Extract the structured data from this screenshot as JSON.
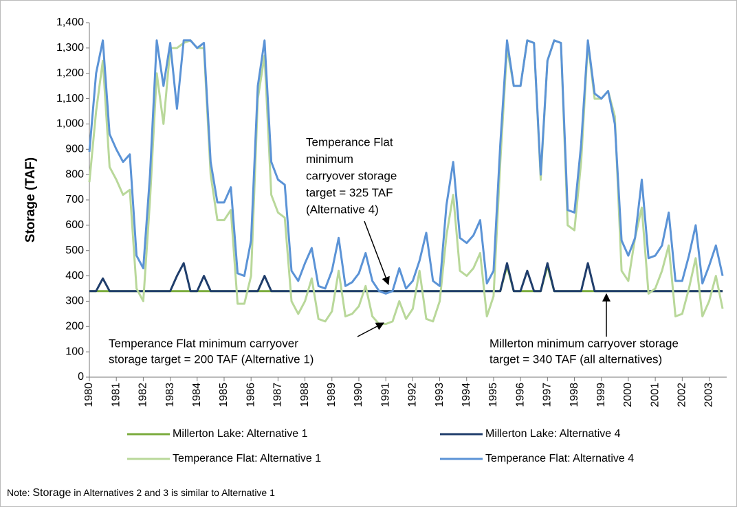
{
  "chart_data": {
    "type": "line",
    "y_label": "Storage (TAF)",
    "x": [
      1980,
      1980.25,
      1980.5,
      1980.75,
      1981,
      1981.25,
      1981.5,
      1981.75,
      1982,
      1982.25,
      1982.5,
      1982.75,
      1983,
      1983.25,
      1983.5,
      1983.75,
      1984,
      1984.25,
      1984.5,
      1984.75,
      1985,
      1985.25,
      1985.5,
      1985.75,
      1986,
      1986.25,
      1986.5,
      1986.75,
      1987,
      1987.25,
      1987.5,
      1987.75,
      1988,
      1988.25,
      1988.5,
      1988.75,
      1989,
      1989.25,
      1989.5,
      1989.75,
      1990,
      1990.25,
      1990.5,
      1990.75,
      1991,
      1991.25,
      1991.5,
      1991.75,
      1992,
      1992.25,
      1992.5,
      1992.75,
      1993,
      1993.25,
      1993.5,
      1993.75,
      1994,
      1994.25,
      1994.5,
      1994.75,
      1995,
      1995.25,
      1995.5,
      1995.75,
      1996,
      1996.25,
      1996.5,
      1996.75,
      1997,
      1997.25,
      1997.5,
      1997.75,
      1998,
      1998.25,
      1998.5,
      1998.75,
      1999,
      1999.25,
      1999.5,
      1999.75,
      2000,
      2000.25,
      2000.5,
      2000.75,
      2001,
      2001.25,
      2001.5,
      2001.75,
      2002,
      2002.25,
      2002.5,
      2002.75,
      2003,
      2003.25,
      2003.5
    ],
    "series": [
      {
        "name": "Millerton Lake: Alternative 1",
        "color": "#7aab3c",
        "values": [
          340,
          340,
          340,
          340,
          340,
          340,
          340,
          340,
          340,
          340,
          340,
          340,
          340,
          340,
          340,
          340,
          340,
          340,
          340,
          340,
          340,
          340,
          340,
          340,
          340,
          340,
          340,
          340,
          340,
          340,
          340,
          340,
          340,
          340,
          340,
          340,
          340,
          340,
          340,
          340,
          340,
          340,
          340,
          340,
          340,
          340,
          340,
          340,
          340,
          340,
          340,
          340,
          340,
          340,
          340,
          340,
          340,
          340,
          340,
          340,
          340,
          340,
          440,
          340,
          340,
          340,
          340,
          340,
          440,
          340,
          340,
          340,
          340,
          340,
          340,
          340,
          340,
          340,
          340,
          340,
          340,
          340,
          340,
          340,
          340,
          340,
          340,
          340,
          340,
          340,
          340,
          340,
          340,
          340,
          340
        ]
      },
      {
        "name": "Millerton Lake: Alternative 4",
        "color": "#1f3d6b",
        "values": [
          340,
          340,
          390,
          340,
          340,
          340,
          340,
          340,
          340,
          340,
          340,
          340,
          340,
          400,
          450,
          340,
          340,
          400,
          340,
          340,
          340,
          340,
          340,
          340,
          340,
          340,
          400,
          340,
          340,
          340,
          340,
          340,
          340,
          340,
          340,
          340,
          340,
          340,
          340,
          340,
          340,
          340,
          340,
          340,
          340,
          340,
          340,
          340,
          340,
          340,
          340,
          340,
          340,
          340,
          340,
          340,
          340,
          340,
          340,
          340,
          340,
          340,
          450,
          340,
          340,
          420,
          340,
          340,
          450,
          340,
          340,
          340,
          340,
          340,
          450,
          340,
          340,
          340,
          340,
          340,
          340,
          340,
          340,
          340,
          340,
          340,
          340,
          340,
          340,
          340,
          340,
          340,
          340,
          340,
          340
        ]
      },
      {
        "name": "Temperance Flat: Alternative 1",
        "color": "#b9d89a",
        "values": [
          770,
          1050,
          1250,
          830,
          780,
          720,
          740,
          350,
          300,
          700,
          1200,
          1000,
          1300,
          1300,
          1320,
          1330,
          1300,
          1300,
          800,
          620,
          620,
          660,
          290,
          290,
          400,
          1100,
          1270,
          720,
          650,
          630,
          300,
          250,
          300,
          390,
          230,
          220,
          260,
          420,
          240,
          250,
          280,
          360,
          240,
          210,
          210,
          220,
          300,
          230,
          270,
          420,
          230,
          220,
          300,
          560,
          720,
          420,
          400,
          430,
          490,
          240,
          320,
          850,
          1300,
          1150,
          1150,
          1330,
          1320,
          780,
          1250,
          1330,
          1320,
          600,
          580,
          850,
          1320,
          1100,
          1100,
          1130,
          1030,
          420,
          380,
          550,
          670,
          330,
          350,
          420,
          520,
          240,
          250,
          350,
          470,
          240,
          300,
          400,
          270
        ]
      },
      {
        "name": "Temperance Flat: Alternative 4",
        "color": "#5b93d6",
        "values": [
          890,
          1200,
          1330,
          960,
          900,
          850,
          880,
          480,
          430,
          800,
          1330,
          1150,
          1320,
          1060,
          1330,
          1330,
          1300,
          1320,
          850,
          690,
          690,
          750,
          410,
          400,
          540,
          1150,
          1330,
          850,
          780,
          760,
          420,
          380,
          450,
          510,
          360,
          350,
          420,
          550,
          360,
          375,
          410,
          490,
          380,
          340,
          330,
          340,
          430,
          350,
          380,
          460,
          570,
          380,
          360,
          680,
          850,
          550,
          530,
          560,
          620,
          370,
          420,
          920,
          1330,
          1150,
          1150,
          1330,
          1320,
          800,
          1250,
          1330,
          1320,
          660,
          650,
          920,
          1330,
          1120,
          1100,
          1130,
          1000,
          540,
          480,
          550,
          780,
          470,
          480,
          520,
          650,
          380,
          380,
          480,
          600,
          370,
          440,
          520,
          400
        ]
      }
    ],
    "xlim": [
      1980,
      2003.65
    ],
    "xticks": [
      1980,
      1981,
      1982,
      1983,
      1984,
      1985,
      1986,
      1987,
      1988,
      1989,
      1990,
      1991,
      1992,
      1993,
      1994,
      1995,
      1996,
      1997,
      1998,
      1999,
      2000,
      2001,
      2002,
      2003
    ],
    "ylim": [
      0,
      1400
    ],
    "yticks": [
      0,
      100,
      200,
      300,
      400,
      500,
      600,
      700,
      800,
      900,
      {
        "value": 1000,
        "label": "1,000"
      },
      {
        "value": 1100,
        "label": "1,100"
      },
      {
        "value": 1200,
        "label": "1,200"
      },
      {
        "value": 1300,
        "label": "1,300"
      },
      {
        "value": 1400,
        "label": "1,400"
      }
    ],
    "annotations": [
      {
        "lines": [
          "Temperance Flat",
          "minimum",
          "carryover storage",
          "target = 325 TAF",
          "(Alternative 4)"
        ]
      },
      {
        "lines": [
          "Temperance Flat minimum carryover",
          "storage target = 200 TAF (Alternative 1)"
        ]
      },
      {
        "lines": [
          "Millerton minimum carryover storage",
          "target = 340 TAF (all alternatives)"
        ]
      }
    ],
    "note": {
      "prefix": "Note:",
      "emphasis": "Storage",
      "rest": "in Alternatives 2 and 3 is similar to Alternative 1"
    }
  }
}
